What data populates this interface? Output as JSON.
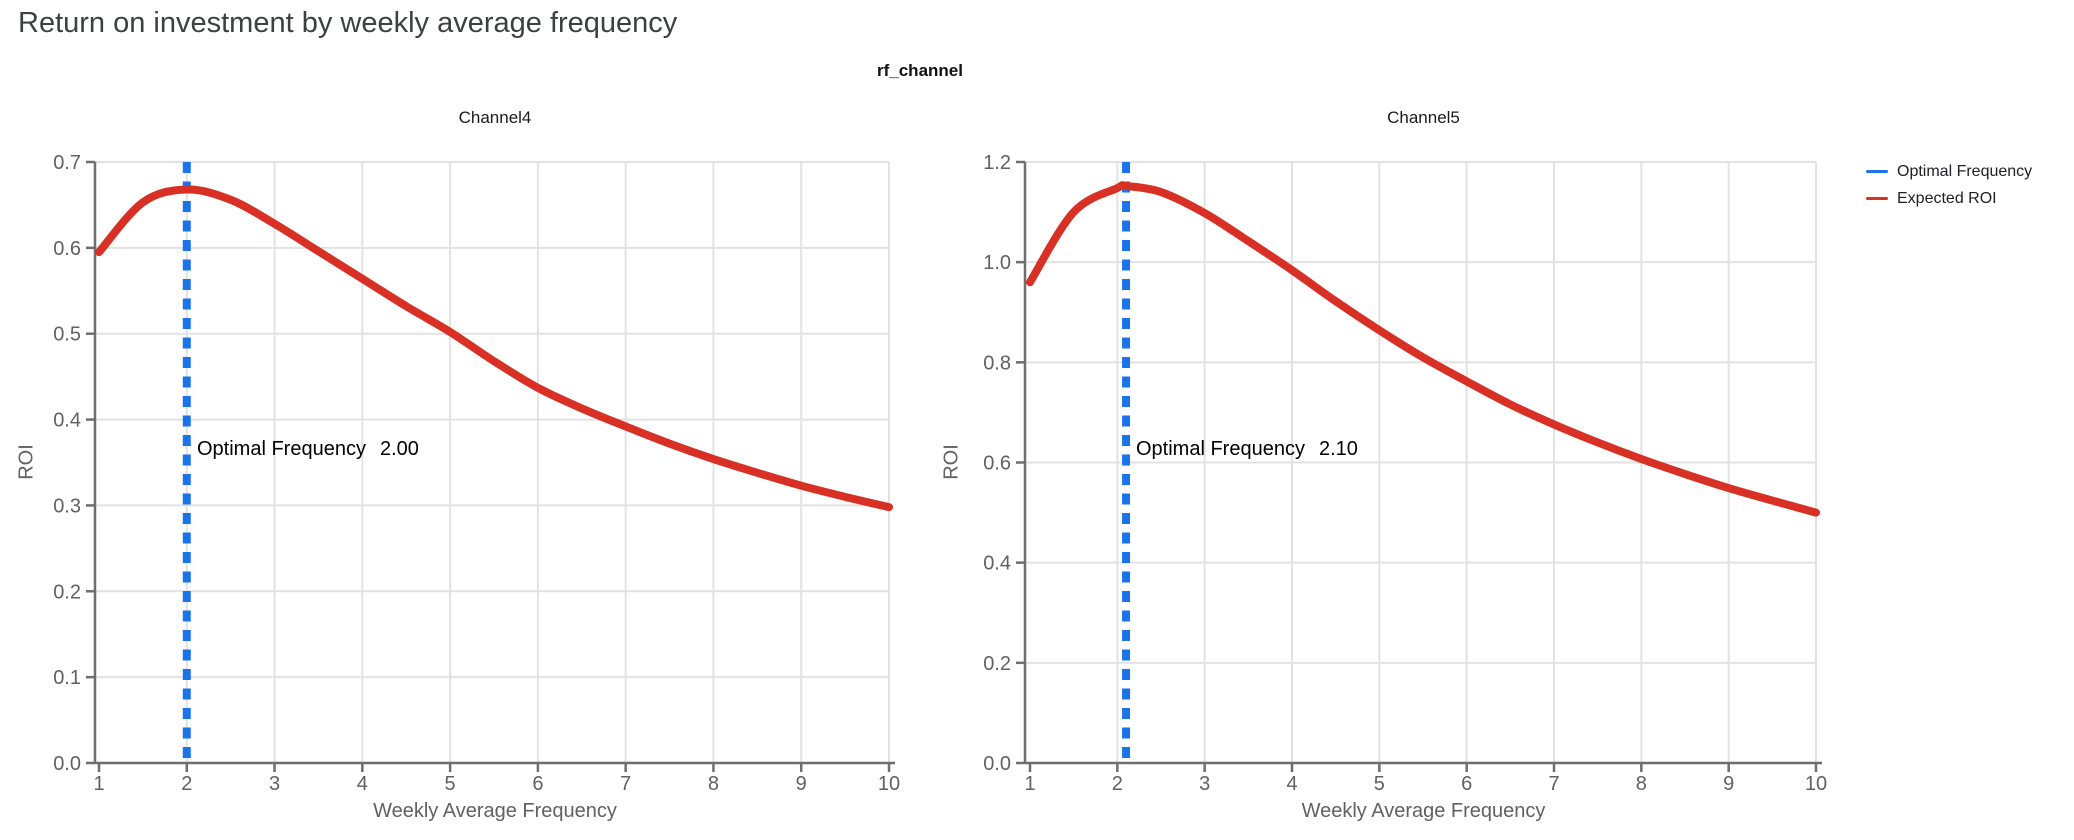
{
  "page_title": "Return on investment by weekly average frequency",
  "figure_title": "rf_channel",
  "colors": {
    "expected_roi": "#d93025",
    "optimal_frequency": "#1a73e8",
    "gridline": "#e2e2e2",
    "axis": "#6e6e6e",
    "tick_label": "#616161"
  },
  "legend": {
    "items": [
      {
        "label": "Optimal Frequency",
        "color": "#1a73e8"
      },
      {
        "label": "Expected ROI",
        "color": "#d93025"
      }
    ]
  },
  "chart_data": [
    {
      "type": "line",
      "title": "Channel4",
      "xlabel": "Weekly Average Frequency",
      "ylabel": "ROI",
      "xlim": [
        1,
        10
      ],
      "ylim": [
        0,
        0.7
      ],
      "xticks": [
        1,
        2,
        3,
        4,
        5,
        6,
        7,
        8,
        9,
        10
      ],
      "yticks": [
        0.0,
        0.1,
        0.2,
        0.3,
        0.4,
        0.5,
        0.6,
        0.7
      ],
      "grid": true,
      "optimal_frequency": 2.0,
      "annotation_label": "Optimal Frequency",
      "annotation_value": "2.00",
      "series": [
        {
          "name": "Expected ROI",
          "x": [
            1,
            1.5,
            2,
            2.5,
            3,
            3.5,
            4,
            4.5,
            5,
            5.5,
            6,
            6.5,
            7,
            7.5,
            8,
            8.5,
            9,
            9.5,
            10
          ],
          "y": [
            0.595,
            0.653,
            0.668,
            0.656,
            0.628,
            0.596,
            0.564,
            0.532,
            0.502,
            0.468,
            0.437,
            0.413,
            0.392,
            0.372,
            0.354,
            0.338,
            0.323,
            0.31,
            0.298
          ]
        }
      ]
    },
    {
      "type": "line",
      "title": "Channel5",
      "xlabel": "Weekly Average Frequency",
      "ylabel": "ROI",
      "xlim": [
        1,
        10
      ],
      "ylim": [
        0,
        1.2
      ],
      "xticks": [
        1,
        2,
        3,
        4,
        5,
        6,
        7,
        8,
        9,
        10
      ],
      "yticks": [
        0.0,
        0.2,
        0.4,
        0.6,
        0.8,
        1.0,
        1.2
      ],
      "grid": true,
      "optimal_frequency": 2.1,
      "annotation_label": "Optimal Frequency",
      "annotation_value": "2.10",
      "series": [
        {
          "name": "Expected ROI",
          "x": [
            1,
            1.5,
            2,
            2.1,
            2.5,
            3,
            3.5,
            4,
            4.5,
            5,
            5.5,
            6,
            6.5,
            7,
            7.5,
            8,
            8.5,
            9,
            9.5,
            10
          ],
          "y": [
            0.96,
            1.1,
            1.148,
            1.152,
            1.14,
            1.098,
            1.042,
            0.984,
            0.922,
            0.864,
            0.81,
            0.762,
            0.716,
            0.676,
            0.64,
            0.607,
            0.577,
            0.549,
            0.524,
            0.5
          ]
        }
      ]
    }
  ]
}
